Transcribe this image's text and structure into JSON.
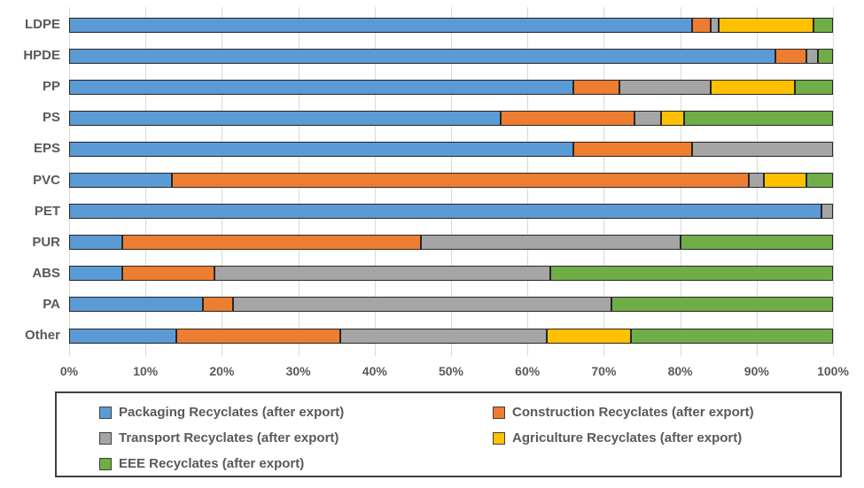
{
  "styles": {
    "text_color": "#595959",
    "grid_color": "#d9d9d9",
    "bar_border_color": "#262626",
    "legend_border_color": "#404040",
    "background_color": "#ffffff"
  },
  "chart_data": {
    "type": "bar",
    "variant": "horizontal-stacked",
    "title": "",
    "xlabel": "",
    "ylabel": "",
    "xlim": [
      0,
      100
    ],
    "grid": true,
    "legend_position": "bottom",
    "x_ticks": [
      "0%",
      "10%",
      "20%",
      "30%",
      "40%",
      "50%",
      "60%",
      "70%",
      "80%",
      "90%",
      "100%"
    ],
    "categories": [
      "LDPE",
      "HPDE",
      "PP",
      "PS",
      "EPS",
      "PVC",
      "PET",
      "PUR",
      "ABS",
      "PA",
      "Other"
    ],
    "series": [
      {
        "name": "Packaging Recyclates (after export)",
        "color": "#5b9bd5",
        "values": [
          81.5,
          92.5,
          66,
          56.5,
          66,
          13.5,
          98.5,
          7,
          7,
          17.5,
          14
        ]
      },
      {
        "name": "Construction Recyclates (after export)",
        "color": "#ed7d31",
        "values": [
          2.5,
          4,
          6,
          17.5,
          15.5,
          75.5,
          0,
          39,
          12,
          4,
          21.5
        ]
      },
      {
        "name": "Transport Recyclates (after export)",
        "color": "#a5a5a5",
        "values": [
          1,
          1.5,
          12,
          3.5,
          18.5,
          2,
          1.5,
          34,
          44,
          49.5,
          27
        ]
      },
      {
        "name": "Agriculture Recyclates (after export)",
        "color": "#ffc000",
        "values": [
          12.5,
          0,
          11,
          3,
          0,
          5.5,
          0,
          0,
          0,
          0,
          11
        ]
      },
      {
        "name": "EEE Recyclates (after export)",
        "color": "#70ad47",
        "values": [
          2.5,
          2,
          5,
          19.5,
          0,
          3.5,
          0,
          20,
          37,
          29,
          26.5
        ]
      }
    ]
  }
}
